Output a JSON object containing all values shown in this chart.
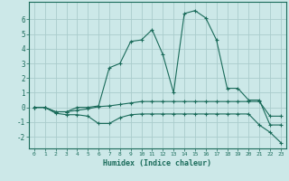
{
  "xlabel": "Humidex (Indice chaleur)",
  "background_color": "#cce8e8",
  "grid_color": "#aacccc",
  "line_color": "#1a6b5a",
  "x_values": [
    0,
    1,
    2,
    3,
    4,
    5,
    6,
    7,
    8,
    9,
    10,
    11,
    12,
    13,
    14,
    15,
    16,
    17,
    18,
    19,
    20,
    21,
    22,
    23
  ],
  "series": [
    [
      0.0,
      0.0,
      -0.3,
      -0.3,
      -0.2,
      -0.1,
      0.05,
      0.1,
      0.2,
      0.3,
      0.4,
      0.4,
      0.4,
      0.4,
      0.4,
      0.4,
      0.4,
      0.4,
      0.4,
      0.4,
      0.4,
      0.4,
      -0.6,
      -0.6
    ],
    [
      0.0,
      0.0,
      -0.4,
      -0.5,
      -0.5,
      -0.6,
      -1.1,
      -1.1,
      -0.7,
      -0.5,
      -0.45,
      -0.45,
      -0.45,
      -0.45,
      -0.45,
      -0.45,
      -0.45,
      -0.45,
      -0.45,
      -0.45,
      -0.45,
      -1.2,
      -1.7,
      -2.4
    ],
    [
      0.0,
      0.0,
      -0.3,
      -0.3,
      0.0,
      0.0,
      0.1,
      2.7,
      3.0,
      4.5,
      4.6,
      5.3,
      3.6,
      1.0,
      6.4,
      6.6,
      6.1,
      4.6,
      1.3,
      1.3,
      0.5,
      0.5,
      -1.2,
      -1.2
    ]
  ],
  "ylim": [
    -2.8,
    7.2
  ],
  "xlim": [
    -0.5,
    23.5
  ],
  "yticks": [
    -2,
    -1,
    0,
    1,
    2,
    3,
    4,
    5,
    6
  ],
  "xticks": [
    0,
    1,
    2,
    3,
    4,
    5,
    6,
    7,
    8,
    9,
    10,
    11,
    12,
    13,
    14,
    15,
    16,
    17,
    18,
    19,
    20,
    21,
    22,
    23
  ],
  "fig_width": 3.2,
  "fig_height": 2.0,
  "dpi": 100
}
